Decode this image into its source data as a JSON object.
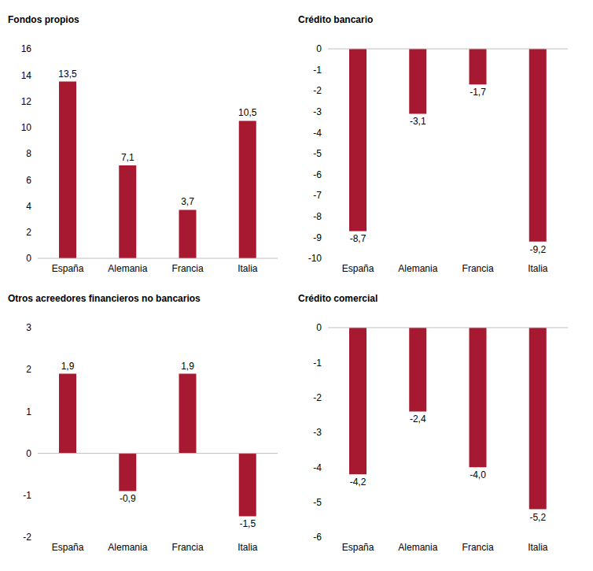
{
  "chart_data": [
    {
      "type": "bar",
      "title": "Fondos propios",
      "categories": [
        "España",
        "Alemania",
        "Francia",
        "Italia"
      ],
      "values": [
        13.5,
        7.1,
        3.7,
        10.5
      ],
      "value_labels": [
        "13,5",
        "7,1",
        "3,7",
        "10,5"
      ],
      "color": "#a71930",
      "ylim": [
        0,
        16
      ],
      "yticks": [
        0,
        2,
        4,
        6,
        8,
        10,
        12,
        14,
        16
      ],
      "grid": false,
      "data_labels": true
    },
    {
      "type": "bar",
      "title": "Crédito bancario",
      "categories": [
        "España",
        "Alemania",
        "Francia",
        "Italia"
      ],
      "values": [
        -8.7,
        -3.1,
        -1.7,
        -9.2
      ],
      "value_labels": [
        "-8,7",
        "-3,1",
        "-1,7",
        "-9,2"
      ],
      "color": "#a71930",
      "ylim": [
        -10,
        0
      ],
      "yticks": [
        -10,
        -9,
        -8,
        -7,
        -6,
        -5,
        -4,
        -3,
        -2,
        -1,
        0
      ],
      "grid": false,
      "data_labels": true
    },
    {
      "type": "bar",
      "title": "Otros acreedores financieros no bancarios",
      "categories": [
        "España",
        "Alemania",
        "Francia",
        "Italia"
      ],
      "values": [
        1.9,
        -0.9,
        1.9,
        -1.5
      ],
      "value_labels": [
        "1,9",
        "-0,9",
        "1,9",
        "-1,5"
      ],
      "color": "#a71930",
      "ylim": [
        -2,
        3
      ],
      "yticks": [
        -2,
        -1,
        0,
        1,
        2,
        3
      ],
      "grid": false,
      "data_labels": true
    },
    {
      "type": "bar",
      "title": "Crédito comercial",
      "categories": [
        "España",
        "Alemania",
        "Francia",
        "Italia"
      ],
      "values": [
        -4.2,
        -2.4,
        -4.0,
        -5.2
      ],
      "value_labels": [
        "-4,2",
        "-2,4",
        "-4,0",
        "-5,2"
      ],
      "color": "#a71930",
      "ylim": [
        -6,
        0
      ],
      "yticks": [
        -6,
        -5,
        -4,
        -3,
        -2,
        -1,
        0
      ],
      "grid": false,
      "data_labels": true
    }
  ]
}
